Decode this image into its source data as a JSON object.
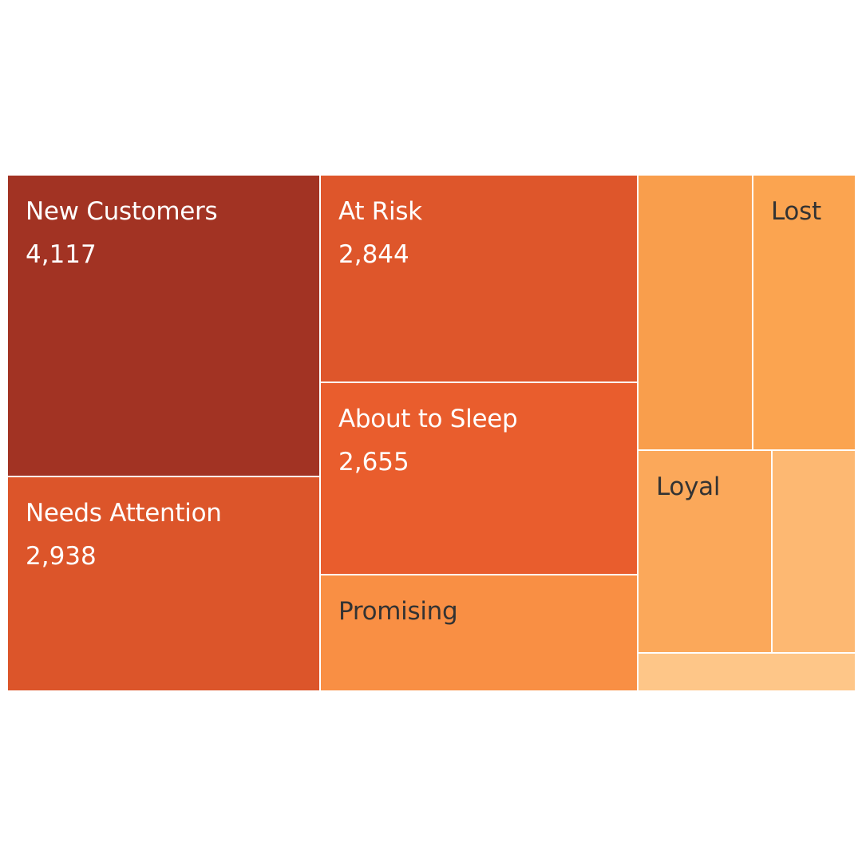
{
  "chart_data": {
    "type": "treemap",
    "title": "",
    "segments": [
      {
        "name": "New Customers",
        "value": 4117,
        "value_label": "4,117",
        "color": "#a23323",
        "text_color": "light"
      },
      {
        "name": "Needs Attention",
        "value": 2938,
        "value_label": "2,938",
        "color": "#dc552a",
        "text_color": "light"
      },
      {
        "name": "At Risk",
        "value": 2844,
        "value_label": "2,844",
        "color": "#de562b",
        "text_color": "light"
      },
      {
        "name": "About to Sleep",
        "value": 2655,
        "value_label": "2,655",
        "color": "#e95d2d",
        "text_color": "light"
      },
      {
        "name": "Promising",
        "value": null,
        "value_label": "",
        "color": "#f98f44",
        "text_color": "dark"
      },
      {
        "name": "",
        "value": null,
        "value_label": "",
        "color": "#f99e4c",
        "text_color": "dark"
      },
      {
        "name": "Lost",
        "value": null,
        "value_label": "",
        "color": "#fba450",
        "text_color": "dark"
      },
      {
        "name": "Loyal",
        "value": null,
        "value_label": "",
        "color": "#fba85a",
        "text_color": "dark"
      },
      {
        "name": "",
        "value": null,
        "value_label": "",
        "color": "#fdb872",
        "text_color": "dark"
      },
      {
        "name": "",
        "value": null,
        "value_label": "",
        "color": "#fec688",
        "text_color": "dark"
      }
    ]
  }
}
